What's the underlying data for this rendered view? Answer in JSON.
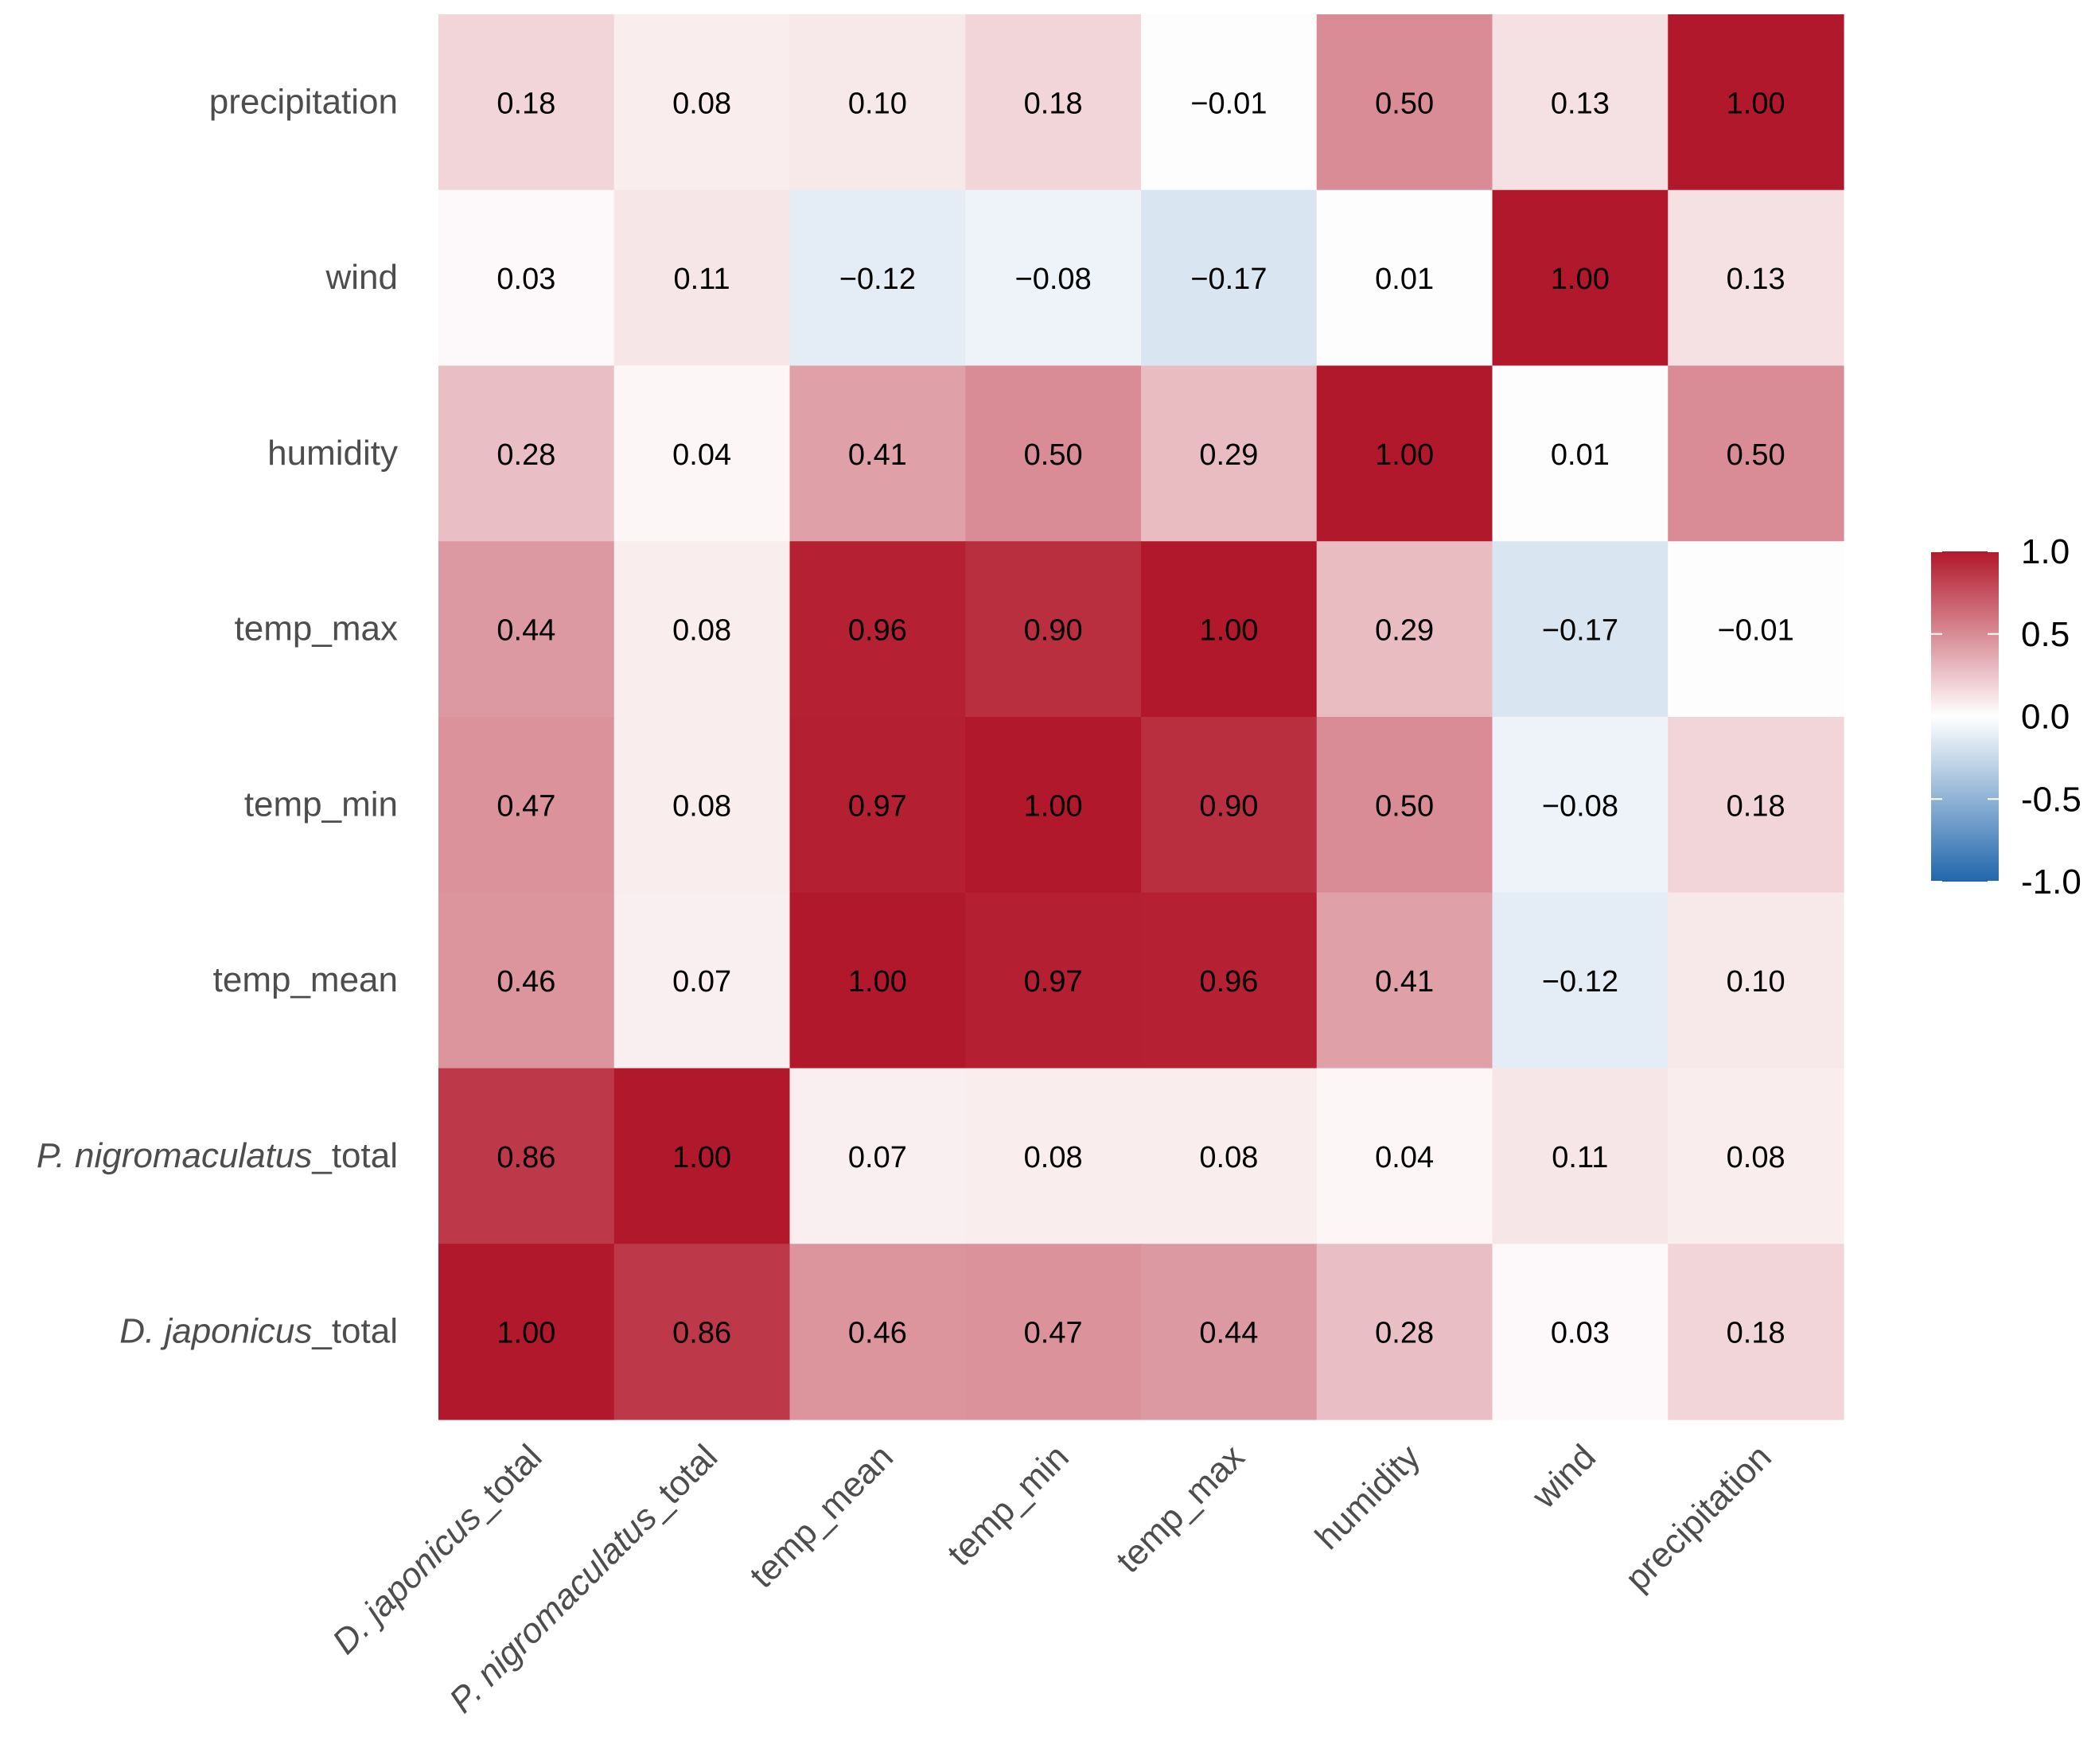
{
  "chart_data": {
    "type": "heatmap",
    "title": "",
    "xlabel": "",
    "ylabel": "",
    "variables": [
      {
        "label": "D. japonicus_total",
        "italic": "D. japonicus",
        "suffix": "_total"
      },
      {
        "label": "P. nigromaculatus_total",
        "italic": "P. nigromaculatus",
        "suffix": "_total"
      },
      {
        "label": "temp_mean",
        "italic": "",
        "suffix": "temp_mean"
      },
      {
        "label": "temp_min",
        "italic": "",
        "suffix": "temp_min"
      },
      {
        "label": "temp_max",
        "italic": "",
        "suffix": "temp_max"
      },
      {
        "label": "humidity",
        "italic": "",
        "suffix": "humidity"
      },
      {
        "label": "wind",
        "italic": "",
        "suffix": "wind"
      },
      {
        "label": "precipitation",
        "italic": "",
        "suffix": "precipitation"
      }
    ],
    "matrix": [
      [
        1.0,
        0.86,
        0.46,
        0.47,
        0.44,
        0.28,
        0.03,
        0.18
      ],
      [
        0.86,
        1.0,
        0.07,
        0.08,
        0.08,
        0.04,
        0.11,
        0.08
      ],
      [
        0.46,
        0.07,
        1.0,
        0.97,
        0.96,
        0.41,
        -0.12,
        0.1
      ],
      [
        0.47,
        0.08,
        0.97,
        1.0,
        0.9,
        0.5,
        -0.08,
        0.18
      ],
      [
        0.44,
        0.08,
        0.96,
        0.9,
        1.0,
        0.29,
        -0.17,
        -0.01
      ],
      [
        0.28,
        0.04,
        0.41,
        0.5,
        0.29,
        1.0,
        0.01,
        0.5
      ],
      [
        0.03,
        0.11,
        -0.12,
        -0.08,
        -0.17,
        0.01,
        1.0,
        0.13
      ],
      [
        0.18,
        0.08,
        0.1,
        0.18,
        -0.01,
        0.5,
        0.13,
        1.0
      ]
    ],
    "value_range": [
      -1.0,
      1.0
    ],
    "colorbar": {
      "ticks": [
        1.0,
        0.5,
        0.0,
        -0.5,
        -1.0
      ],
      "tick_labels": [
        "1.0",
        "0.5",
        "0.0",
        "-0.5",
        "-1.0"
      ],
      "colors": {
        "high": "#b2182b",
        "mid": "#ffffff",
        "low": "#2166ac"
      }
    },
    "legend_position": "right",
    "grid": false
  }
}
